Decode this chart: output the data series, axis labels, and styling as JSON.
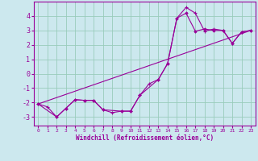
{
  "title": "",
  "xlabel": "Windchill (Refroidissement éolien,°C)",
  "bg_color": "#cce8ee",
  "grid_color": "#99ccbb",
  "line_color": "#990099",
  "spine_color": "#990099",
  "xlim": [
    -0.5,
    23.5
  ],
  "ylim": [
    -3.6,
    5.0
  ],
  "xticks": [
    0,
    1,
    2,
    3,
    4,
    5,
    6,
    7,
    8,
    9,
    10,
    11,
    12,
    13,
    14,
    15,
    16,
    17,
    18,
    19,
    20,
    21,
    22,
    23
  ],
  "yticks": [
    -3,
    -2,
    -1,
    0,
    1,
    2,
    3,
    4
  ],
  "line1_x": [
    0,
    1,
    2,
    3,
    4,
    5,
    6,
    7,
    8,
    9,
    10,
    11,
    12,
    13,
    14,
    15,
    16,
    17,
    18,
    19,
    20,
    21,
    22,
    23
  ],
  "line1_y": [
    -2.1,
    -2.3,
    -3.0,
    -2.4,
    -1.8,
    -1.85,
    -1.85,
    -2.5,
    -2.7,
    -2.6,
    -2.6,
    -1.5,
    -0.7,
    -0.4,
    0.7,
    3.85,
    4.6,
    4.2,
    2.95,
    3.1,
    3.0,
    2.1,
    2.9,
    3.0
  ],
  "line2_x": [
    0,
    2,
    3,
    4,
    5,
    6,
    7,
    9,
    10,
    11,
    13,
    14,
    15,
    16,
    17,
    18,
    19,
    20,
    21,
    22,
    23
  ],
  "line2_y": [
    -2.1,
    -3.0,
    -2.4,
    -1.8,
    -1.85,
    -1.85,
    -2.5,
    -2.6,
    -2.6,
    -1.5,
    -0.4,
    0.7,
    3.85,
    4.2,
    2.95,
    3.1,
    3.0,
    3.0,
    2.1,
    2.9,
    3.0
  ],
  "line3_x": [
    0,
    23
  ],
  "line3_y": [
    -2.1,
    3.0
  ]
}
